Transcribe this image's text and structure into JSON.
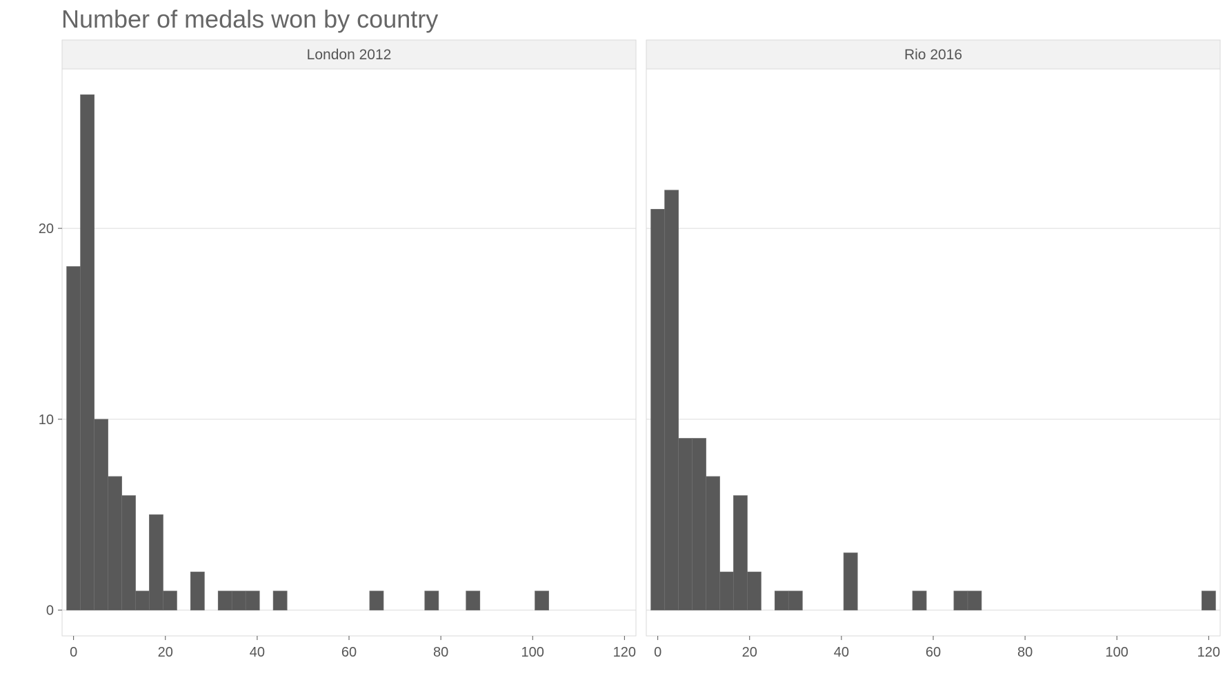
{
  "chart_data": {
    "type": "bar",
    "subtype": "faceted-histogram",
    "title": "Number of medals won by country",
    "xlabel": "",
    "ylabel": "",
    "bin_width": 3,
    "xlim": [
      -2.5,
      122.5
    ],
    "ylim": [
      -1.35,
      28.35
    ],
    "x_ticks": [
      0,
      20,
      40,
      60,
      80,
      100,
      120
    ],
    "y_ticks": [
      0,
      10,
      20
    ],
    "grid": "horizontal",
    "legend": "none",
    "colors": {
      "bar": "#595959",
      "bar_edge": "#6e6e6e",
      "grid": "#dcdcdc",
      "strip_fill": "#f2f2f2",
      "panel_border": "#d9d9d9"
    },
    "panels": [
      {
        "label": "London 2012",
        "bins": [
          {
            "x": 0,
            "count": 18
          },
          {
            "x": 3,
            "count": 27
          },
          {
            "x": 6,
            "count": 10
          },
          {
            "x": 9,
            "count": 7
          },
          {
            "x": 12,
            "count": 6
          },
          {
            "x": 15,
            "count": 1
          },
          {
            "x": 18,
            "count": 5
          },
          {
            "x": 21,
            "count": 1
          },
          {
            "x": 27,
            "count": 2
          },
          {
            "x": 33,
            "count": 1
          },
          {
            "x": 36,
            "count": 1
          },
          {
            "x": 39,
            "count": 1
          },
          {
            "x": 45,
            "count": 1
          },
          {
            "x": 66,
            "count": 1
          },
          {
            "x": 78,
            "count": 1
          },
          {
            "x": 87,
            "count": 1
          },
          {
            "x": 102,
            "count": 1
          }
        ]
      },
      {
        "label": "Rio 2016",
        "bins": [
          {
            "x": 0,
            "count": 21
          },
          {
            "x": 3,
            "count": 22
          },
          {
            "x": 6,
            "count": 9
          },
          {
            "x": 9,
            "count": 9
          },
          {
            "x": 12,
            "count": 7
          },
          {
            "x": 15,
            "count": 2
          },
          {
            "x": 18,
            "count": 6
          },
          {
            "x": 21,
            "count": 2
          },
          {
            "x": 27,
            "count": 1
          },
          {
            "x": 30,
            "count": 1
          },
          {
            "x": 42,
            "count": 3
          },
          {
            "x": 57,
            "count": 1
          },
          {
            "x": 66,
            "count": 1
          },
          {
            "x": 69,
            "count": 1
          },
          {
            "x": 120,
            "count": 1
          }
        ]
      }
    ]
  }
}
